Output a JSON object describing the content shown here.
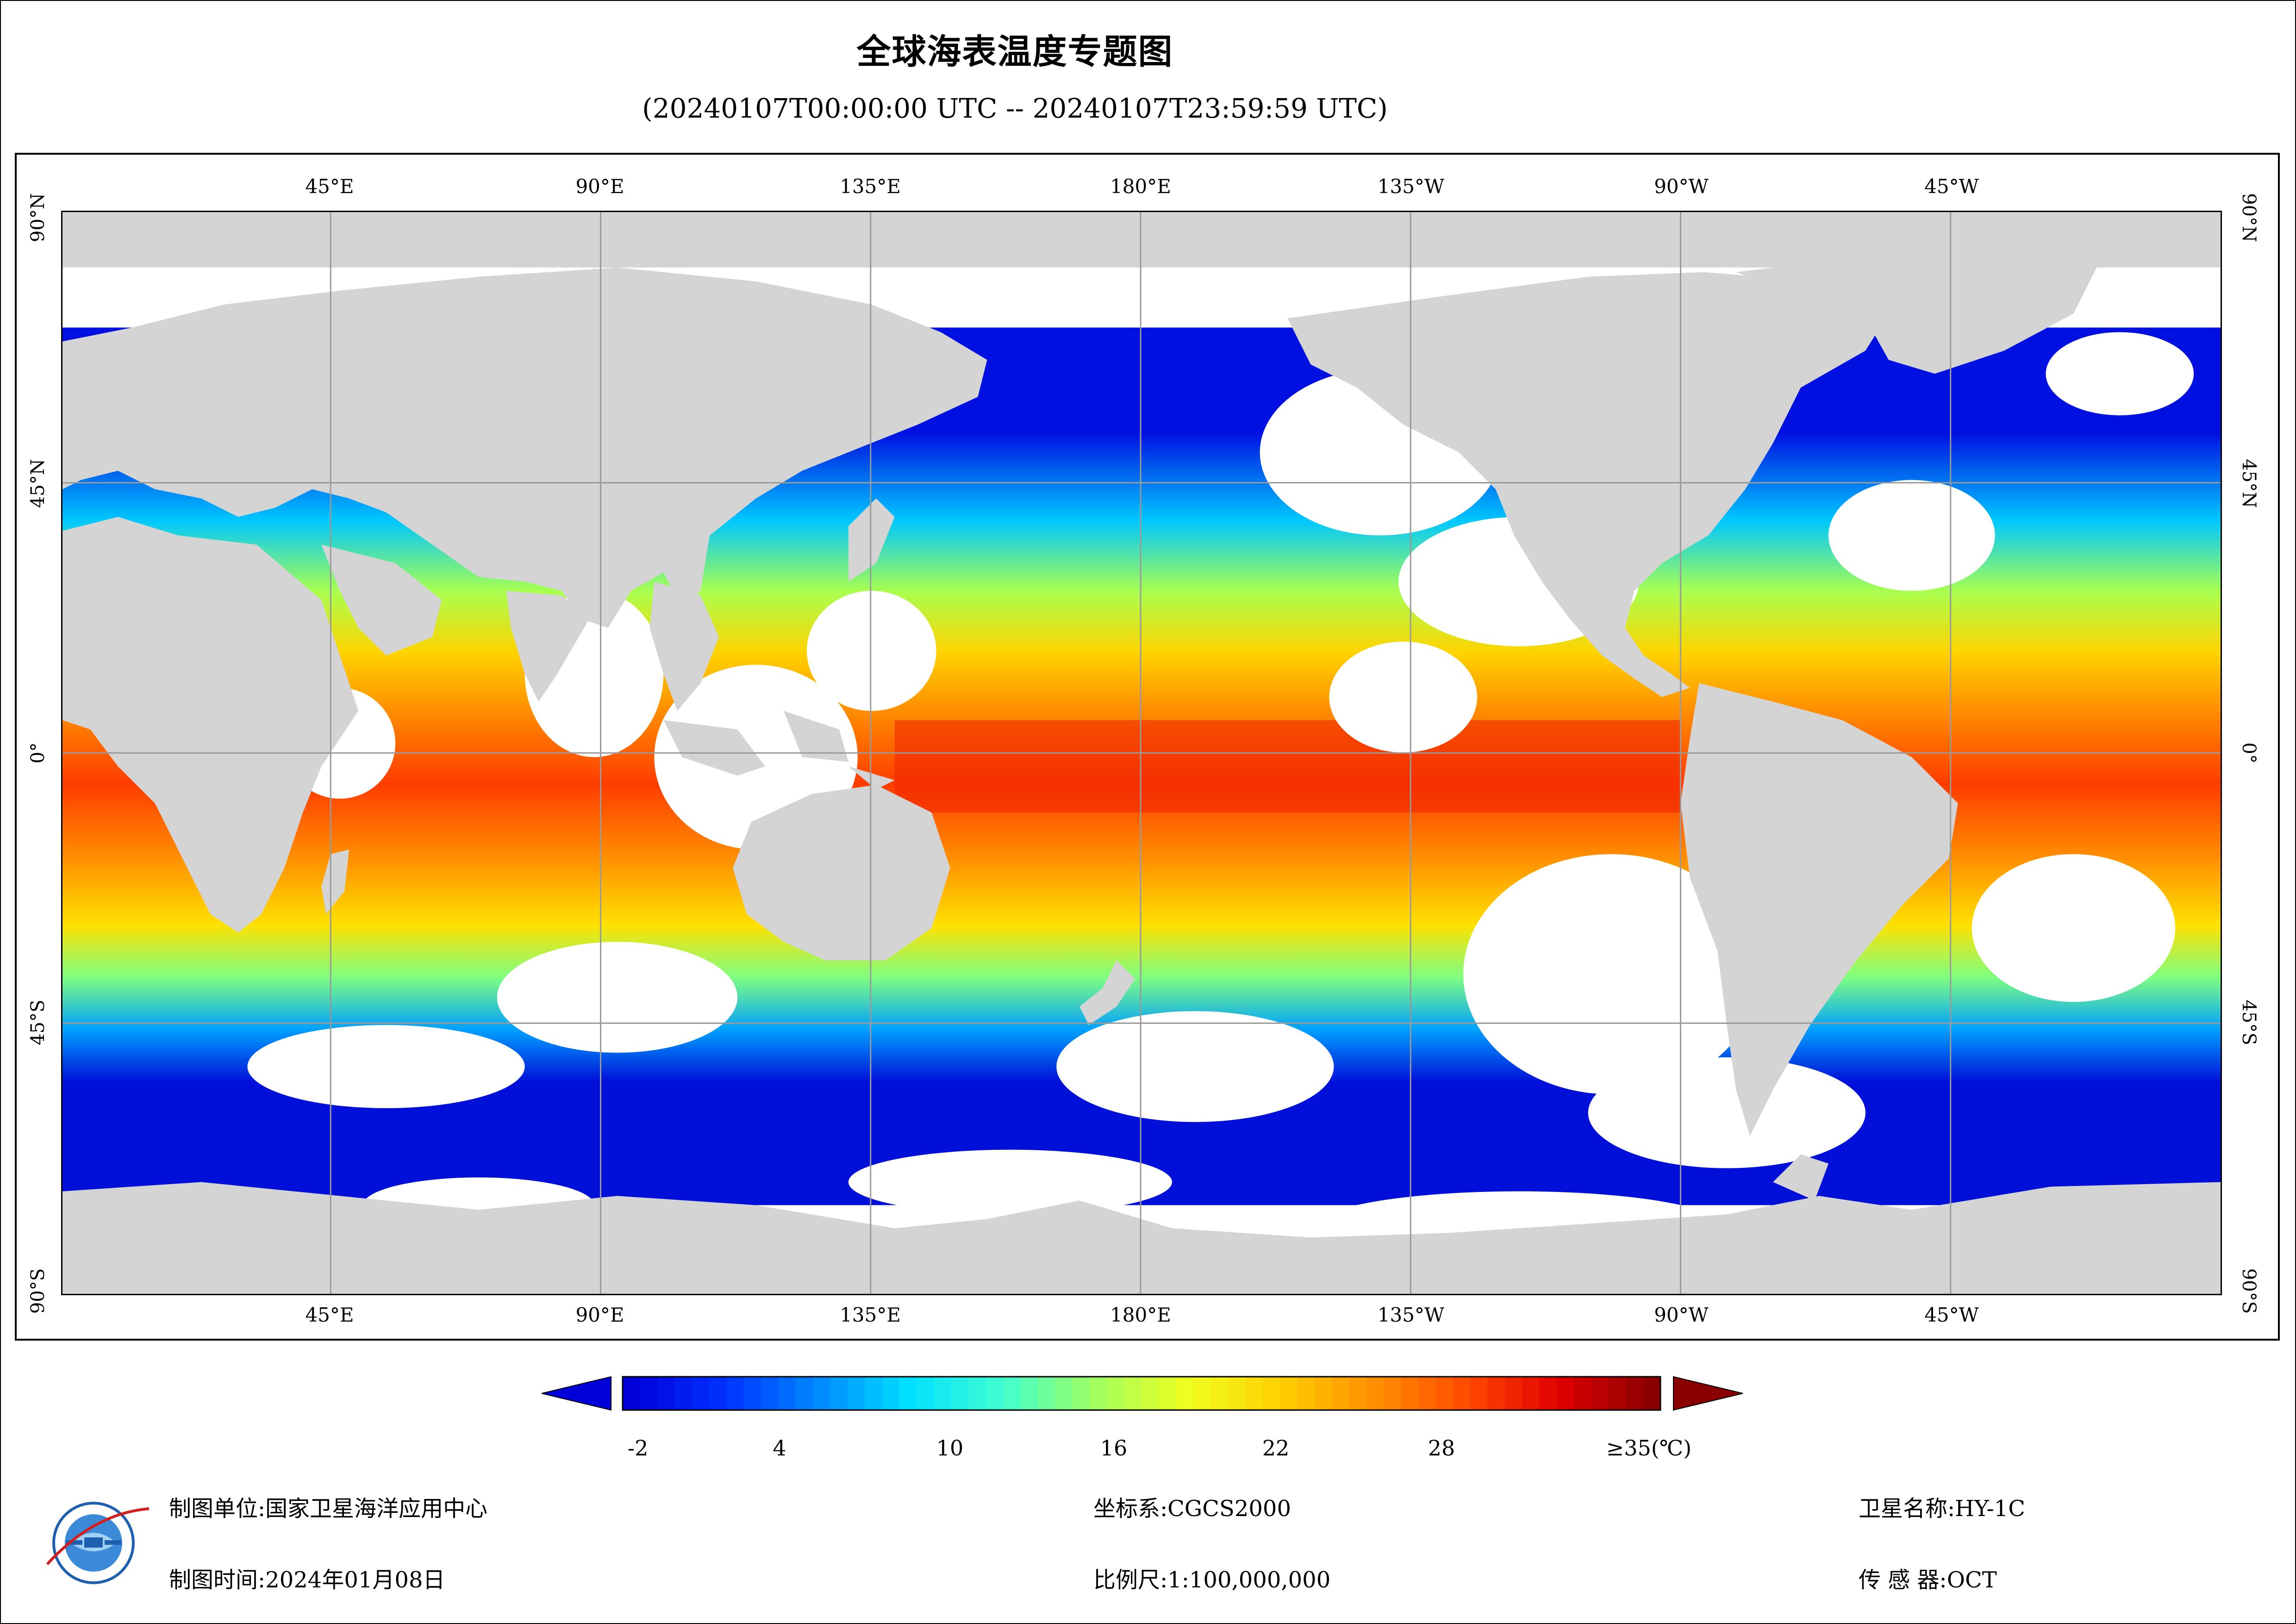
{
  "title": "全球海表温度专题图",
  "subtitle": "(20240107T00:00:00 UTC -- 20240107T23:59:59 UTC)",
  "map": {
    "longitude_labels": [
      "45°E",
      "90°E",
      "135°E",
      "180°E",
      "135°W",
      "90°W",
      "45°W"
    ],
    "latitude_labels": [
      "90°N",
      "45°N",
      "0°",
      "45°S",
      "90°S"
    ],
    "land_color": "#d4d4d4",
    "cloud_nodata_color": "#ffffff"
  },
  "colorbar": {
    "ticks": [
      "-2",
      "4",
      "10",
      "16",
      "22",
      "28",
      "≥35(℃)"
    ],
    "tick_values": [
      -2,
      4,
      10,
      16,
      22,
      28,
      35
    ],
    "min": -2,
    "max": 35,
    "colors": [
      "#0000d8",
      "#0030ff",
      "#0088ff",
      "#00e0ff",
      "#40ffd0",
      "#a0ff60",
      "#f0ff20",
      "#ffd000",
      "#ff9000",
      "#ff4a00",
      "#e00000",
      "#8a0000"
    ]
  },
  "footer": {
    "unit_label": "制图单位:国家卫星海洋应用中心",
    "time_label": "制图时间:2024年01月08日",
    "crs_label": "坐标系:CGCS2000",
    "scale_label": "比例尺:1:100,000,000",
    "satellite_label": "卫星名称:HY-1C",
    "sensor_label": "传 感 器:OCT"
  },
  "logo": {
    "icon": "nsoas-logo-icon"
  }
}
